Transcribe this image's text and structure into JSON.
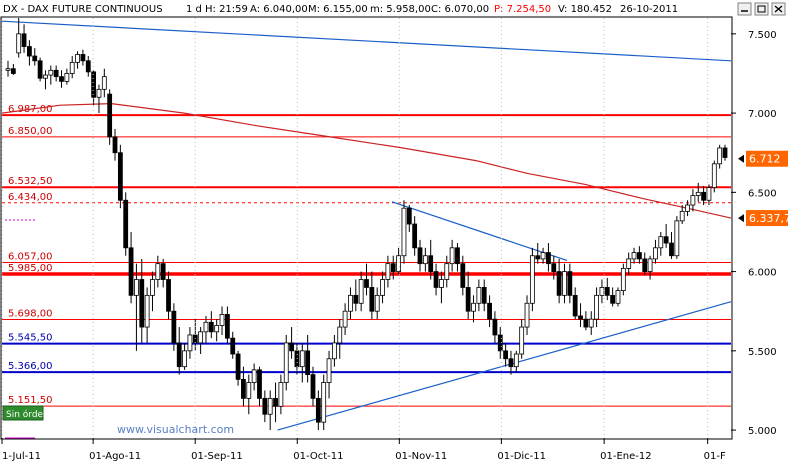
{
  "header": {
    "symbol": "DX - DAX FUTURE CONTINUOUS",
    "period": "1 d",
    "high": "H: 21:59",
    "ask": "A: 6.040,00",
    "max": "M: 6.155,00",
    "min": "m: 5.958,00",
    "close": "C: 6.070,00",
    "price": "P: 7.254,50",
    "volume": "V: 180.452",
    "date": "26-10-2011"
  },
  "footer": {
    "watermark": "www.visualchart.com",
    "orders_badge": "Sin órdenes"
  },
  "colors": {
    "background": "#ffffff",
    "resistance_red": "#ff0000",
    "support_blue": "#0000cc",
    "trendline_blue": "#1a5fc8",
    "moving_average": "#cc2222",
    "candle_up": "#ffffff",
    "candle_down": "#000000",
    "price_tag": "#ff6600"
  },
  "chart_data": {
    "type": "candlestick",
    "y_ticks": [
      "7.500",
      "7.000",
      "6.500",
      "6.000",
      "5.500",
      "5.000"
    ],
    "x_ticks": [
      "1-Jul-11",
      "01-Ago-11",
      "01-Sep-11",
      "01-Oct-11",
      "01-Nov-11",
      "01-Dic-11",
      "01-Ene-12",
      "01-F"
    ],
    "ylim": [
      4950,
      7600
    ],
    "price_tags": [
      {
        "label": "6.712",
        "value": 6712,
        "color": "#ff6600"
      },
      {
        "label": "6.337,7",
        "value": 6337.7,
        "color": "#ff6600"
      }
    ],
    "levels": [
      {
        "label": "6.987,00",
        "value": 6987,
        "color": "#ff0000",
        "weight": "thick",
        "dashed": false
      },
      {
        "label": "6.850,00",
        "value": 6850,
        "color": "#ff0000",
        "weight": "thin",
        "dashed": false
      },
      {
        "label": "6.532,50",
        "value": 6532.5,
        "color": "#ff0000",
        "weight": "thick",
        "dashed": false
      },
      {
        "label": "6.434,00",
        "value": 6434,
        "color": "#ff0000",
        "weight": "thin",
        "dashed": true
      },
      {
        "label": "6.057,00",
        "value": 6057,
        "color": "#ff0000",
        "weight": "thin",
        "dashed": false
      },
      {
        "label": "5.985,00",
        "value": 5985,
        "color": "#ff0000",
        "weight": "heavy",
        "dashed": false
      },
      {
        "label": "5.698,00",
        "value": 5698,
        "color": "#ff0000",
        "weight": "thin",
        "dashed": false
      },
      {
        "label": "5.545,50",
        "value": 5545.5,
        "color": "#0000cc",
        "weight": "thick",
        "dashed": false
      },
      {
        "label": "5.366,00",
        "value": 5366,
        "color": "#0000cc",
        "weight": "thick",
        "dashed": false
      },
      {
        "label": "5.151,50",
        "value": 5151.5,
        "color": "#ff0000",
        "weight": "thin",
        "dashed": false
      }
    ],
    "candles": [
      {
        "o": 7270,
        "h": 7330,
        "l": 7230,
        "c": 7280
      },
      {
        "o": 7280,
        "h": 7310,
        "l": 7240,
        "c": 7250
      },
      {
        "o": 7380,
        "h": 7600,
        "l": 7350,
        "c": 7500
      },
      {
        "o": 7500,
        "h": 7560,
        "l": 7380,
        "c": 7420
      },
      {
        "o": 7420,
        "h": 7460,
        "l": 7300,
        "c": 7360
      },
      {
        "o": 7360,
        "h": 7410,
        "l": 7300,
        "c": 7330
      },
      {
        "o": 7330,
        "h": 7350,
        "l": 7200,
        "c": 7220
      },
      {
        "o": 7220,
        "h": 7270,
        "l": 7150,
        "c": 7240
      },
      {
        "o": 7240,
        "h": 7300,
        "l": 7180,
        "c": 7270
      },
      {
        "o": 7270,
        "h": 7300,
        "l": 7200,
        "c": 7230
      },
      {
        "o": 7230,
        "h": 7270,
        "l": 7160,
        "c": 7200
      },
      {
        "o": 7200,
        "h": 7280,
        "l": 7180,
        "c": 7250
      },
      {
        "o": 7250,
        "h": 7360,
        "l": 7220,
        "c": 7320
      },
      {
        "o": 7320,
        "h": 7390,
        "l": 7280,
        "c": 7370
      },
      {
        "o": 7370,
        "h": 7400,
        "l": 7300,
        "c": 7330
      },
      {
        "o": 7330,
        "h": 7360,
        "l": 7230,
        "c": 7260
      },
      {
        "o": 7260,
        "h": 7270,
        "l": 7050,
        "c": 7100
      },
      {
        "o": 7100,
        "h": 7180,
        "l": 7000,
        "c": 7150
      },
      {
        "o": 7150,
        "h": 7280,
        "l": 7100,
        "c": 7230
      },
      {
        "o": 7120,
        "h": 7150,
        "l": 6800,
        "c": 6850
      },
      {
        "o": 6850,
        "h": 6900,
        "l": 6700,
        "c": 6750
      },
      {
        "o": 6750,
        "h": 6800,
        "l": 6400,
        "c": 6450
      },
      {
        "o": 6450,
        "h": 6500,
        "l": 6100,
        "c": 6150
      },
      {
        "o": 6150,
        "h": 6250,
        "l": 5800,
        "c": 5850
      },
      {
        "o": 5850,
        "h": 6050,
        "l": 5500,
        "c": 5950
      },
      {
        "o": 5950,
        "h": 6080,
        "l": 5550,
        "c": 5650
      },
      {
        "o": 5650,
        "h": 5900,
        "l": 5550,
        "c": 5850
      },
      {
        "o": 5850,
        "h": 6000,
        "l": 5750,
        "c": 5950
      },
      {
        "o": 5950,
        "h": 6100,
        "l": 5900,
        "c": 6050
      },
      {
        "o": 6050,
        "h": 6080,
        "l": 5900,
        "c": 5950
      },
      {
        "o": 5950,
        "h": 6000,
        "l": 5700,
        "c": 5750
      },
      {
        "o": 5750,
        "h": 5800,
        "l": 5500,
        "c": 5550
      },
      {
        "o": 5550,
        "h": 5650,
        "l": 5350,
        "c": 5400
      },
      {
        "o": 5400,
        "h": 5550,
        "l": 5380,
        "c": 5500
      },
      {
        "o": 5500,
        "h": 5650,
        "l": 5450,
        "c": 5600
      },
      {
        "o": 5600,
        "h": 5700,
        "l": 5500,
        "c": 5550
      },
      {
        "o": 5550,
        "h": 5650,
        "l": 5480,
        "c": 5620
      },
      {
        "o": 5620,
        "h": 5720,
        "l": 5550,
        "c": 5680
      },
      {
        "o": 5680,
        "h": 5750,
        "l": 5580,
        "c": 5620
      },
      {
        "o": 5620,
        "h": 5700,
        "l": 5560,
        "c": 5660
      },
      {
        "o": 5660,
        "h": 5780,
        "l": 5600,
        "c": 5730
      },
      {
        "o": 5730,
        "h": 5780,
        "l": 5550,
        "c": 5580
      },
      {
        "o": 5580,
        "h": 5620,
        "l": 5450,
        "c": 5480
      },
      {
        "o": 5480,
        "h": 5500,
        "l": 5280,
        "c": 5320
      },
      {
        "o": 5320,
        "h": 5400,
        "l": 5150,
        "c": 5200
      },
      {
        "o": 5200,
        "h": 5350,
        "l": 5100,
        "c": 5300
      },
      {
        "o": 5300,
        "h": 5420,
        "l": 5250,
        "c": 5380
      },
      {
        "o": 5380,
        "h": 5400,
        "l": 5150,
        "c": 5200
      },
      {
        "o": 5200,
        "h": 5250,
        "l": 5050,
        "c": 5100
      },
      {
        "o": 5100,
        "h": 5250,
        "l": 5000,
        "c": 5200
      },
      {
        "o": 5200,
        "h": 5300,
        "l": 5050,
        "c": 5150
      },
      {
        "o": 5150,
        "h": 5350,
        "l": 5100,
        "c": 5300
      },
      {
        "o": 5300,
        "h": 5600,
        "l": 5250,
        "c": 5550
      },
      {
        "o": 5550,
        "h": 5650,
        "l": 5450,
        "c": 5500
      },
      {
        "o": 5500,
        "h": 5550,
        "l": 5350,
        "c": 5400
      },
      {
        "o": 5400,
        "h": 5550,
        "l": 5300,
        "c": 5500
      },
      {
        "o": 5500,
        "h": 5600,
        "l": 5300,
        "c": 5350
      },
      {
        "o": 5350,
        "h": 5400,
        "l": 5150,
        "c": 5200
      },
      {
        "o": 5200,
        "h": 5250,
        "l": 5000,
        "c": 5050
      },
      {
        "o": 5050,
        "h": 5350,
        "l": 5000,
        "c": 5300
      },
      {
        "o": 5300,
        "h": 5500,
        "l": 5200,
        "c": 5450
      },
      {
        "o": 5450,
        "h": 5600,
        "l": 5400,
        "c": 5550
      },
      {
        "o": 5550,
        "h": 5700,
        "l": 5450,
        "c": 5650
      },
      {
        "o": 5650,
        "h": 5800,
        "l": 5600,
        "c": 5750
      },
      {
        "o": 5750,
        "h": 5900,
        "l": 5700,
        "c": 5850
      },
      {
        "o": 5850,
        "h": 5950,
        "l": 5750,
        "c": 5800
      },
      {
        "o": 5800,
        "h": 6000,
        "l": 5750,
        "c": 5950
      },
      {
        "o": 5950,
        "h": 6050,
        "l": 5850,
        "c": 5900
      },
      {
        "o": 5900,
        "h": 6000,
        "l": 5700,
        "c": 5750
      },
      {
        "o": 5750,
        "h": 5900,
        "l": 5700,
        "c": 5850
      },
      {
        "o": 5850,
        "h": 6000,
        "l": 5800,
        "c": 5950
      },
      {
        "o": 5950,
        "h": 6100,
        "l": 5900,
        "c": 6050
      },
      {
        "o": 6050,
        "h": 6100,
        "l": 5950,
        "c": 6000
      },
      {
        "o": 6000,
        "h": 6150,
        "l": 5980,
        "c": 6100
      },
      {
        "o": 6100,
        "h": 6450,
        "l": 6050,
        "c": 6400
      },
      {
        "o": 6400,
        "h": 6420,
        "l": 6250,
        "c": 6300
      },
      {
        "o": 6300,
        "h": 6350,
        "l": 6100,
        "c": 6150
      },
      {
        "o": 6150,
        "h": 6200,
        "l": 6000,
        "c": 6050
      },
      {
        "o": 6050,
        "h": 6150,
        "l": 6000,
        "c": 6100
      },
      {
        "o": 6100,
        "h": 6200,
        "l": 5950,
        "c": 6000
      },
      {
        "o": 6000,
        "h": 6050,
        "l": 5850,
        "c": 5900
      },
      {
        "o": 5900,
        "h": 6000,
        "l": 5800,
        "c": 5950
      },
      {
        "o": 5950,
        "h": 6100,
        "l": 5900,
        "c": 6050
      },
      {
        "o": 6050,
        "h": 6200,
        "l": 6000,
        "c": 6150
      },
      {
        "o": 6150,
        "h": 6180,
        "l": 6000,
        "c": 6050
      },
      {
        "o": 6050,
        "h": 6100,
        "l": 5850,
        "c": 5900
      },
      {
        "o": 5900,
        "h": 6000,
        "l": 5700,
        "c": 5750
      },
      {
        "o": 5750,
        "h": 5850,
        "l": 5680,
        "c": 5800
      },
      {
        "o": 5800,
        "h": 5950,
        "l": 5750,
        "c": 5900
      },
      {
        "o": 5900,
        "h": 5950,
        "l": 5750,
        "c": 5800
      },
      {
        "o": 5800,
        "h": 5850,
        "l": 5650,
        "c": 5700
      },
      {
        "o": 5700,
        "h": 5750,
        "l": 5550,
        "c": 5600
      },
      {
        "o": 5600,
        "h": 5650,
        "l": 5450,
        "c": 5500
      },
      {
        "o": 5500,
        "h": 5550,
        "l": 5400,
        "c": 5450
      },
      {
        "o": 5450,
        "h": 5500,
        "l": 5350,
        "c": 5400
      },
      {
        "o": 5400,
        "h": 5500,
        "l": 5360,
        "c": 5480
      },
      {
        "o": 5480,
        "h": 5700,
        "l": 5450,
        "c": 5650
      },
      {
        "o": 5650,
        "h": 5850,
        "l": 5600,
        "c": 5800
      },
      {
        "o": 5800,
        "h": 6150,
        "l": 5750,
        "c": 6100
      },
      {
        "o": 6100,
        "h": 6180,
        "l": 6050,
        "c": 6080
      },
      {
        "o": 6080,
        "h": 6150,
        "l": 6050,
        "c": 6120
      },
      {
        "o": 6120,
        "h": 6180,
        "l": 6000,
        "c": 6050
      },
      {
        "o": 6050,
        "h": 6100,
        "l": 5950,
        "c": 6000
      },
      {
        "o": 6000,
        "h": 6080,
        "l": 5800,
        "c": 5850
      },
      {
        "o": 5850,
        "h": 6050,
        "l": 5800,
        "c": 6000
      },
      {
        "o": 6000,
        "h": 6050,
        "l": 5800,
        "c": 5850
      },
      {
        "o": 5850,
        "h": 5900,
        "l": 5700,
        "c": 5720
      },
      {
        "o": 5720,
        "h": 5800,
        "l": 5650,
        "c": 5700
      },
      {
        "o": 5700,
        "h": 5750,
        "l": 5630,
        "c": 5650
      },
      {
        "o": 5650,
        "h": 5750,
        "l": 5600,
        "c": 5700
      },
      {
        "o": 5700,
        "h": 5900,
        "l": 5650,
        "c": 5850
      },
      {
        "o": 5850,
        "h": 5950,
        "l": 5800,
        "c": 5900
      },
      {
        "o": 5900,
        "h": 5960,
        "l": 5820,
        "c": 5850
      },
      {
        "o": 5850,
        "h": 5900,
        "l": 5780,
        "c": 5800
      },
      {
        "o": 5800,
        "h": 5900,
        "l": 5780,
        "c": 5880
      },
      {
        "o": 5880,
        "h": 6050,
        "l": 5850,
        "c": 6020
      },
      {
        "o": 6020,
        "h": 6120,
        "l": 5980,
        "c": 6080
      },
      {
        "o": 6080,
        "h": 6150,
        "l": 6050,
        "c": 6120
      },
      {
        "o": 6120,
        "h": 6160,
        "l": 6050,
        "c": 6080
      },
      {
        "o": 6080,
        "h": 6120,
        "l": 5980,
        "c": 6000
      },
      {
        "o": 6000,
        "h": 6100,
        "l": 5950,
        "c": 6080
      },
      {
        "o": 6080,
        "h": 6200,
        "l": 6050,
        "c": 6150
      },
      {
        "o": 6150,
        "h": 6250,
        "l": 6100,
        "c": 6220
      },
      {
        "o": 6220,
        "h": 6300,
        "l": 6150,
        "c": 6180
      },
      {
        "o": 6180,
        "h": 6250,
        "l": 6080,
        "c": 6100
      },
      {
        "o": 6100,
        "h": 6350,
        "l": 6080,
        "c": 6320
      },
      {
        "o": 6320,
        "h": 6420,
        "l": 6300,
        "c": 6380
      },
      {
        "o": 6380,
        "h": 6450,
        "l": 6350,
        "c": 6420
      },
      {
        "o": 6420,
        "h": 6520,
        "l": 6380,
        "c": 6480
      },
      {
        "o": 6480,
        "h": 6560,
        "l": 6440,
        "c": 6500
      },
      {
        "o": 6500,
        "h": 6540,
        "l": 6420,
        "c": 6450
      },
      {
        "o": 6450,
        "h": 6550,
        "l": 6420,
        "c": 6530
      },
      {
        "o": 6530,
        "h": 6700,
        "l": 6500,
        "c": 6680
      },
      {
        "o": 6680,
        "h": 6800,
        "l": 6650,
        "c": 6780
      },
      {
        "o": 6780,
        "h": 6800,
        "l": 6700,
        "c": 6720
      }
    ],
    "moving_average": {
      "x_frac": [
        0.0,
        0.08,
        0.15,
        0.25,
        0.35,
        0.45,
        0.55,
        0.65,
        0.72,
        0.8,
        0.88,
        0.95,
        1.0
      ],
      "values": [
        7000,
        7050,
        7060,
        7000,
        6920,
        6850,
        6780,
        6700,
        6620,
        6550,
        6460,
        6390,
        6337.7
      ]
    },
    "trendlines": [
      {
        "x1_frac": 0.0,
        "y1": 7580,
        "x2_frac": 1.0,
        "y2": 7330,
        "color": "#1a5fc8"
      },
      {
        "x1_frac": 0.378,
        "y1": 5000,
        "x2_frac": 1.0,
        "y2": 5810,
        "color": "#1a5fc8"
      },
      {
        "x1_frac": 0.535,
        "y1": 6440,
        "x2_frac": 0.775,
        "y2": 6070,
        "color": "#1a5fc8"
      }
    ]
  }
}
